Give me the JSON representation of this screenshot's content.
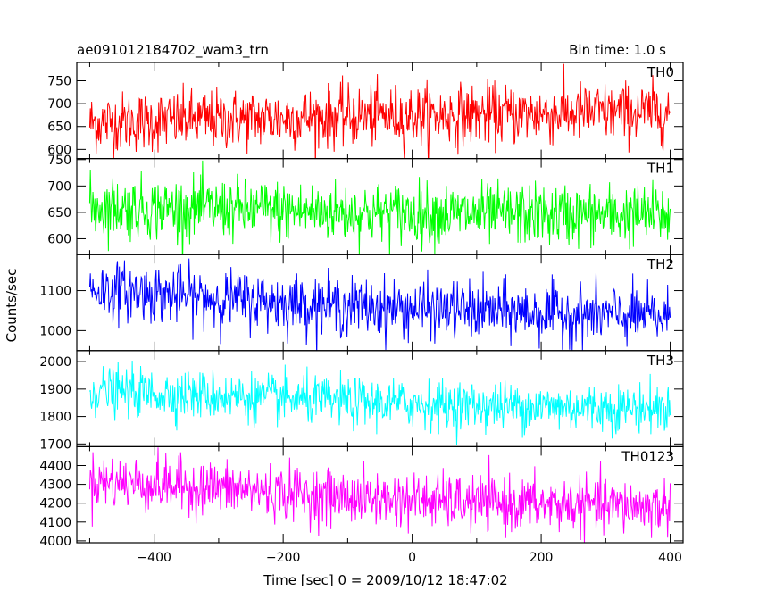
{
  "chart_data": {
    "type": "line",
    "title": "ae091012184702_wam3_trn",
    "subtitle": "Bin time: 1.0 s",
    "xlabel": "Time [sec] 0 = 2009/10/12 18:47:02",
    "ylabel": "Counts/sec",
    "xlim": [
      -520,
      420
    ],
    "x_ticks": [
      -400,
      -200,
      0,
      200,
      400
    ],
    "x_tick_labels": [
      "−400",
      "−200",
      "0",
      "200",
      "400"
    ],
    "x_range": [
      -500,
      400
    ],
    "bin_seconds": 1.0,
    "grid": false,
    "panels": [
      {
        "name": "TH0",
        "color": "#ff0000",
        "ylim": [
          580,
          790
        ],
        "yticks": [
          600,
          650,
          700,
          750
        ],
        "ytick_labels": [
          "600",
          "650",
          "700",
          "750"
        ],
        "trend": [
          [
            -500,
            658
          ],
          [
            -300,
            665
          ],
          [
            -100,
            672
          ],
          [
            100,
            676
          ],
          [
            300,
            680
          ],
          [
            400,
            682
          ]
        ],
        "noise_sd": 33
      },
      {
        "name": "TH1",
        "color": "#00ff00",
        "ylim": [
          570,
          752
        ],
        "yticks": [
          600,
          650,
          700,
          750
        ],
        "ytick_labels": [
          "600",
          "650",
          "700",
          "750"
        ],
        "trend": [
          [
            -500,
            660
          ],
          [
            -300,
            656
          ],
          [
            -100,
            650
          ],
          [
            100,
            646
          ],
          [
            300,
            645
          ],
          [
            400,
            645
          ]
        ],
        "noise_sd": 29
      },
      {
        "name": "TH2",
        "color": "#0000ff",
        "ylim": [
          950,
          1190
        ],
        "yticks": [
          1000,
          1100
        ],
        "ytick_labels": [
          "1000",
          "1100"
        ],
        "trend": [
          [
            -500,
            1105
          ],
          [
            -300,
            1080
          ],
          [
            -100,
            1060
          ],
          [
            100,
            1050
          ],
          [
            300,
            1038
          ],
          [
            400,
            1033
          ]
        ],
        "noise_sd": 36
      },
      {
        "name": "TH3",
        "color": "#00ffff",
        "ylim": [
          1690,
          2040
        ],
        "yticks": [
          1700,
          1800,
          1900,
          2000
        ],
        "ytick_labels": [
          "1700",
          "1800",
          "1900",
          "2000"
        ],
        "trend": [
          [
            -500,
            1895
          ],
          [
            -300,
            1875
          ],
          [
            -100,
            1852
          ],
          [
            100,
            1840
          ],
          [
            300,
            1832
          ],
          [
            400,
            1830
          ]
        ],
        "noise_sd": 44
      },
      {
        "name": "TH0123",
        "color": "#ff00ff",
        "ylim": [
          3990,
          4500
        ],
        "yticks": [
          4000,
          4100,
          4200,
          4300,
          4400
        ],
        "ytick_labels": [
          "4000",
          "4100",
          "4200",
          "4300",
          "4400"
        ],
        "trend": [
          [
            -500,
            4320
          ],
          [
            -300,
            4280
          ],
          [
            -100,
            4230
          ],
          [
            100,
            4200
          ],
          [
            300,
            4185
          ],
          [
            400,
            4180
          ]
        ],
        "noise_sd": 72
      }
    ]
  }
}
